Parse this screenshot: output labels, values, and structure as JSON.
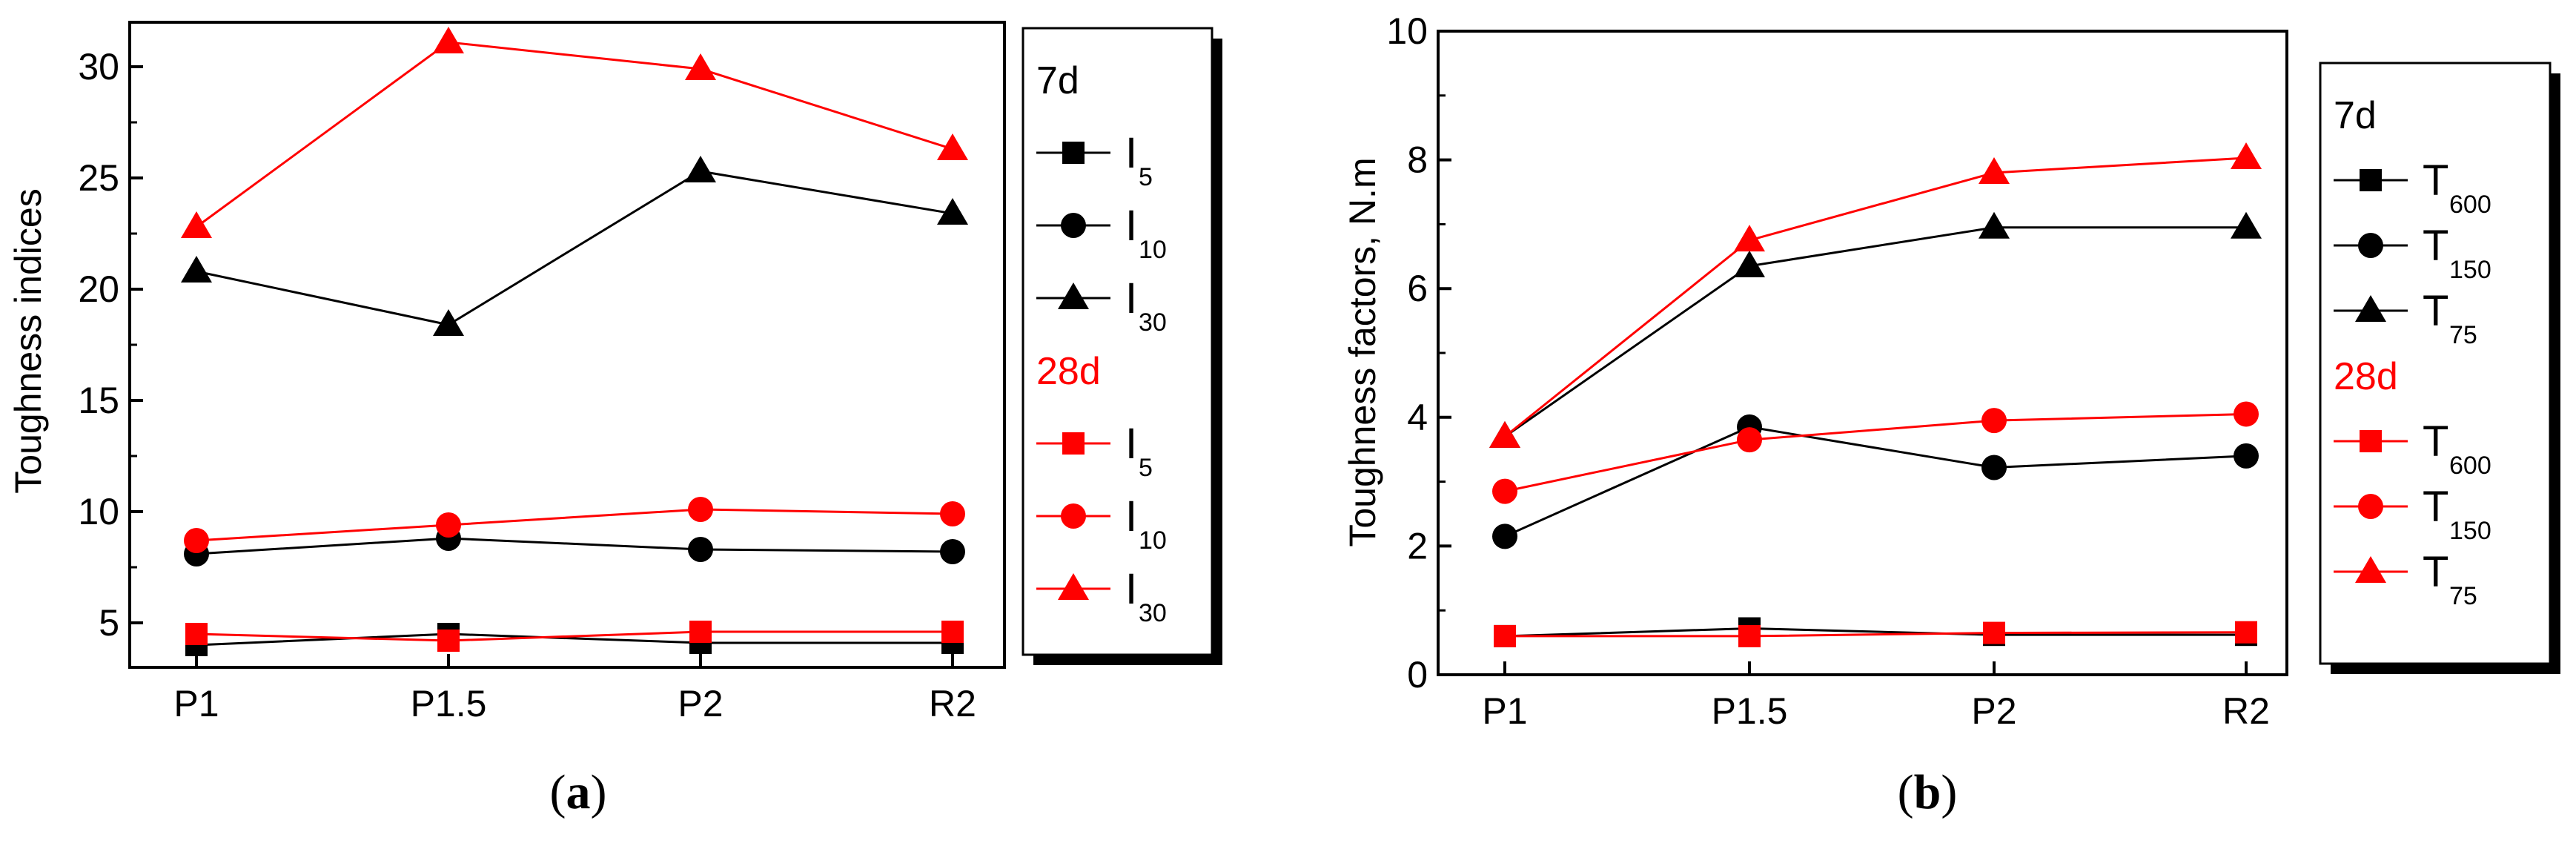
{
  "colors": {
    "black": "#000000",
    "red": "#ff0000"
  },
  "chart_data": [
    {
      "type": "line",
      "caption": "a",
      "categories": [
        "P1",
        "P1.5",
        "P2",
        "R2"
      ],
      "ylabel": "Toughness indices",
      "xlabel": "",
      "ylim": [
        3,
        32
      ],
      "yticks": [
        5,
        10,
        15,
        20,
        25,
        30
      ],
      "legend_groups": [
        {
          "label": "7d",
          "color": "#000000"
        },
        {
          "label": "28d",
          "color": "#ff0000"
        }
      ],
      "series": [
        {
          "name": "7d I5",
          "prefix": "I",
          "sub": "5",
          "group": "7d",
          "color": "#000000",
          "marker": "square",
          "values": [
            4.0,
            4.5,
            4.1,
            4.1
          ]
        },
        {
          "name": "7d I10",
          "prefix": "I",
          "sub": "10",
          "group": "7d",
          "color": "#000000",
          "marker": "circle",
          "values": [
            8.1,
            8.8,
            8.3,
            8.2
          ]
        },
        {
          "name": "7d I30",
          "prefix": "I",
          "sub": "30",
          "group": "7d",
          "color": "#000000",
          "marker": "triangle",
          "values": [
            20.8,
            18.4,
            25.3,
            23.4
          ]
        },
        {
          "name": "28d I5",
          "prefix": "I",
          "sub": "5",
          "group": "28d",
          "color": "#ff0000",
          "marker": "square",
          "values": [
            4.5,
            4.2,
            4.6,
            4.6
          ]
        },
        {
          "name": "28d I10",
          "prefix": "I",
          "sub": "10",
          "group": "28d",
          "color": "#ff0000",
          "marker": "circle",
          "values": [
            8.7,
            9.4,
            10.1,
            9.9
          ]
        },
        {
          "name": "28d I30",
          "prefix": "I",
          "sub": "30",
          "group": "28d",
          "color": "#ff0000",
          "marker": "triangle",
          "values": [
            22.8,
            31.1,
            29.9,
            26.3
          ]
        }
      ]
    },
    {
      "type": "line",
      "caption": "b",
      "categories": [
        "P1",
        "P1.5",
        "P2",
        "R2"
      ],
      "ylabel": "Toughness factors, N.m",
      "xlabel": "",
      "ylim": [
        0,
        10
      ],
      "yticks": [
        0,
        2,
        4,
        6,
        8,
        10
      ],
      "legend_groups": [
        {
          "label": "7d",
          "color": "#000000"
        },
        {
          "label": "28d",
          "color": "#ff0000"
        }
      ],
      "series": [
        {
          "name": "7d T600",
          "prefix": "T",
          "sub": "600",
          "group": "7d",
          "color": "#000000",
          "marker": "square",
          "values": [
            0.6,
            0.72,
            0.62,
            0.62
          ]
        },
        {
          "name": "7d T150",
          "prefix": "T",
          "sub": "150",
          "group": "7d",
          "color": "#000000",
          "marker": "circle",
          "values": [
            2.15,
            3.85,
            3.22,
            3.4
          ]
        },
        {
          "name": "7d T75",
          "prefix": "T",
          "sub": "75",
          "group": "7d",
          "color": "#000000",
          "marker": "triangle",
          "values": [
            3.7,
            6.35,
            6.95,
            6.95
          ]
        },
        {
          "name": "28d T600",
          "prefix": "T",
          "sub": "600",
          "group": "28d",
          "color": "#ff0000",
          "marker": "square",
          "values": [
            0.6,
            0.6,
            0.65,
            0.66
          ]
        },
        {
          "name": "28d T150",
          "prefix": "T",
          "sub": "150",
          "group": "28d",
          "color": "#ff0000",
          "marker": "circle",
          "values": [
            2.85,
            3.65,
            3.95,
            4.05
          ]
        },
        {
          "name": "28d T75",
          "prefix": "T",
          "sub": "75",
          "group": "28d",
          "color": "#ff0000",
          "marker": "triangle",
          "values": [
            3.7,
            6.75,
            7.8,
            8.03
          ]
        }
      ]
    }
  ]
}
